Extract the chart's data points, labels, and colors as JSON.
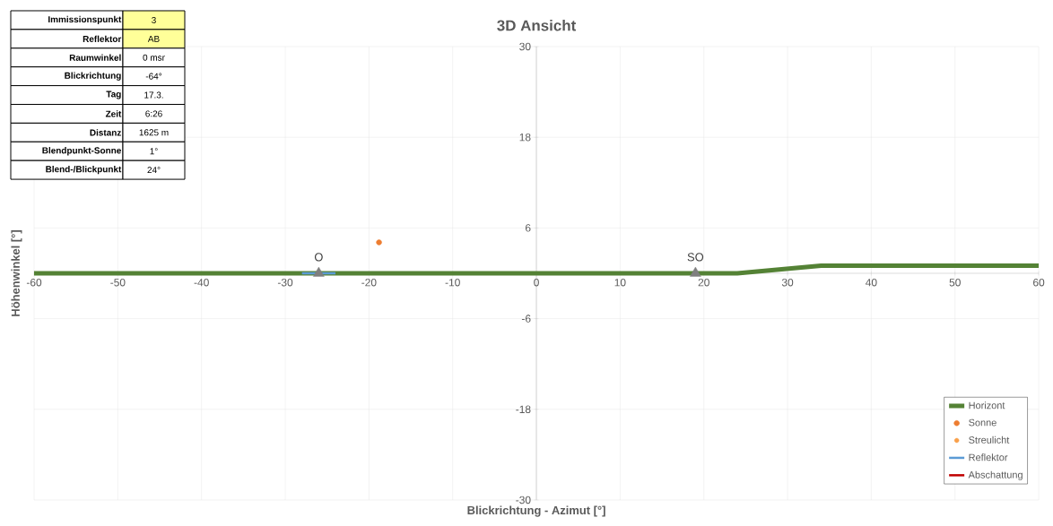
{
  "chart_data": {
    "type": "line",
    "title": "3D Ansicht",
    "xlabel": "Blickrichtung - Azimut [°]",
    "ylabel": "Höhenwinkel [°]",
    "xlim": [
      -60,
      60
    ],
    "ylim": [
      -30,
      30
    ],
    "xticks": [
      -60,
      -50,
      -40,
      -30,
      -20,
      -10,
      0,
      10,
      20,
      30,
      40,
      50,
      60
    ],
    "yticks": [
      -30,
      -18,
      -6,
      6,
      18,
      30
    ],
    "grid": true,
    "legend": "bottom right",
    "annotations": [
      "Immissionspunkt",
      "3",
      "Reflektor",
      "AB",
      "Raumwinkel",
      "0 msr",
      "Blickrichtung",
      "-64°",
      "Tag",
      "17.3.",
      "Zeit",
      "6:26",
      "Distanz",
      "1625 m",
      "Blendpunkt-Sonne",
      "1°",
      "Blend-/Blickpunkt",
      "24°"
    ],
    "series": [
      {
        "name": "Horizont",
        "color": "#548235",
        "marker": "none",
        "x": [
          -60,
          24,
          34,
          60
        ],
        "values": [
          0,
          0,
          1,
          1
        ]
      },
      {
        "name": "Sonne",
        "type": "scatter",
        "color": "#ed7d31",
        "marker": "circle",
        "x": [
          -18.8
        ],
        "values": [
          4.1
        ]
      },
      {
        "name": "Streulicht",
        "type": "scatter",
        "color": "#f9a04a",
        "marker": "circle"
      },
      {
        "name": "Reflektor",
        "color": "#5b9bd5",
        "marker": "none",
        "x": [
          -28,
          -24
        ],
        "values": [
          0,
          0
        ]
      },
      {
        "name": "Abschattung",
        "color": "#c00000",
        "marker": "none"
      },
      {
        "type": "scatter",
        "color": "#7f7f7f",
        "marker": "triangle",
        "x": [
          -26,
          19
        ],
        "values": [
          0,
          0
        ],
        "value_labels": [
          "O",
          "SO"
        ]
      }
    ]
  }
}
